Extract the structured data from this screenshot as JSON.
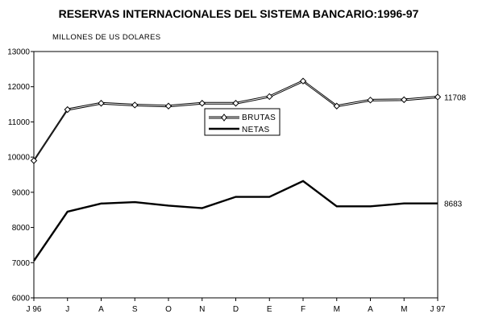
{
  "chart_data": {
    "type": "line",
    "title": "RESERVAS INTERNACIONALES DEL SISTEMA BANCARIO:1996-97",
    "unit_label": "MILLONES DE US DOLARES",
    "categories": [
      "J 96",
      "J",
      "A",
      "S",
      "O",
      "N",
      "D",
      "E",
      "F",
      "M",
      "A",
      "M",
      "J 97"
    ],
    "ylim": [
      6000,
      13000
    ],
    "yticks": [
      6000,
      7000,
      8000,
      9000,
      10000,
      11000,
      12000,
      13000
    ],
    "grid": false,
    "legend_position": "center",
    "series": [
      {
        "name": "BRUTAS",
        "values": [
          9900,
          11350,
          11530,
          11480,
          11450,
          11530,
          11530,
          11720,
          12160,
          11450,
          11620,
          11630,
          11708
        ],
        "end_label": "11708",
        "color": "#000000",
        "marker": "diamond"
      },
      {
        "name": "NETAS",
        "values": [
          7050,
          8450,
          8680,
          8720,
          8620,
          8550,
          8870,
          8870,
          9320,
          8600,
          8600,
          8683,
          8683
        ],
        "end_label": "8683",
        "color": "#000000",
        "marker": "none"
      }
    ]
  }
}
